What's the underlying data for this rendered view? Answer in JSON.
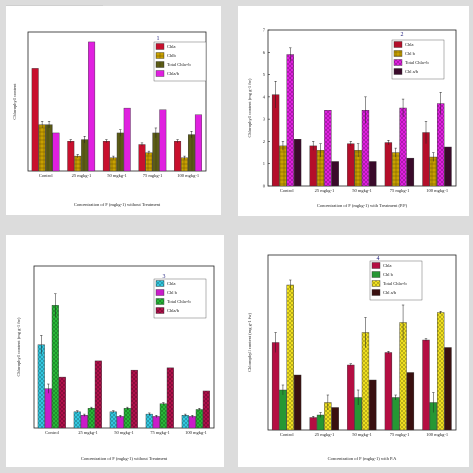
{
  "patterns": {
    "chla": "pat-solid",
    "chlb": "pat-grid",
    "total": "pat-hatch",
    "ratio": "pat-solid"
  },
  "chart_data": [
    {
      "type": "bar",
      "panel_number": "1",
      "categories": [
        "Control",
        "25 mgkg-1",
        "50 mgkg-1",
        "75 mgkg-1",
        "100 mgkg-1"
      ],
      "xlabel": "Concentration of F (mgkg-1) without Treatment",
      "ylabel": "Chlorophyll content",
      "ylim": [
        0,
        4.2
      ],
      "yticks": [],
      "legend_position": "top-right",
      "series": [
        {
          "name": "Chla",
          "color": "#c8102e",
          "values": [
            3.1,
            0.9,
            0.9,
            0.8,
            0.9
          ],
          "errors": [
            0,
            0.05,
            0.05,
            0.05,
            0.05
          ]
        },
        {
          "name": "Chlb",
          "color": "#c8a000",
          "values": [
            1.4,
            0.45,
            0.4,
            0.55,
            0.4
          ],
          "errors": [
            0.1,
            0.05,
            0.05,
            0.05,
            0.05
          ]
        },
        {
          "name": "Total Chla+b",
          "color": "#6b6b1a",
          "values": [
            1.4,
            0.95,
            1.15,
            1.15,
            1.1
          ],
          "errors": [
            0.1,
            0.1,
            0.1,
            0.15,
            0.1
          ]
        },
        {
          "name": "Chla/b",
          "color": "#e020e0",
          "values": [
            1.15,
            3.9,
            1.9,
            1.85,
            1.7
          ],
          "errors": [
            0,
            0,
            0,
            0,
            0
          ]
        }
      ]
    },
    {
      "type": "bar",
      "panel_number": "2",
      "categories": [
        "Control",
        "25 mgkg-1",
        "50 mgkg-1",
        "75 mgkg-1",
        "100 mgkg-1"
      ],
      "xlabel": "Concentration of F (mgkg-1) with Treatment (P.F)",
      "ylabel": "Chlorophyll content (mg g-1 fw)",
      "ylim": [
        0,
        7
      ],
      "yticks": [
        "0",
        "1",
        "2",
        "3",
        "4",
        "5",
        "6",
        "7"
      ],
      "legend_position": "top-right",
      "series": [
        {
          "name": "Chla",
          "color": "#c8102e",
          "values": [
            4.1,
            1.8,
            1.9,
            1.95,
            2.4
          ],
          "errors": [
            0.6,
            0.2,
            0.1,
            0.1,
            0.5
          ]
        },
        {
          "name": "Chl b",
          "color": "#c8a000",
          "values": [
            1.8,
            1.6,
            1.6,
            1.5,
            1.3
          ],
          "errors": [
            0.2,
            0.3,
            0.3,
            0.2,
            0.2
          ]
        },
        {
          "name": "Total Chla+b",
          "color": "#e020e0",
          "values": [
            5.9,
            3.4,
            3.4,
            3.5,
            3.7
          ],
          "errors": [
            0.3,
            0,
            0.6,
            0.4,
            0.5
          ]
        },
        {
          "name": "Chl a/b",
          "color": "#3a0a2a",
          "values": [
            2.1,
            1.1,
            1.1,
            1.25,
            1.75
          ],
          "errors": [
            0,
            0,
            0,
            0,
            0
          ]
        }
      ]
    },
    {
      "type": "bar",
      "panel_number": "3",
      "categories": [
        "Control",
        "25 mgkg-1",
        "50 mgkg-1",
        "75 mgkg-1",
        "100 mgkg-1"
      ],
      "xlabel": "Concentration of F (mgkg-1) without Treatment",
      "ylabel": "Chlorophyll content (mg g-1 fw)",
      "ylim": [
        0,
        7
      ],
      "yticks": [],
      "legend_position": "top-right",
      "series": [
        {
          "name": "Chla",
          "color": "#33c8e0",
          "values": [
            3.6,
            0.7,
            0.7,
            0.6,
            0.55
          ],
          "errors": [
            0.4,
            0.05,
            0.05,
            0.05,
            0.05
          ]
        },
        {
          "name": "Chl b",
          "color": "#e020e0",
          "values": [
            1.7,
            0.55,
            0.5,
            0.5,
            0.5
          ],
          "errors": [
            0.2,
            0.05,
            0.05,
            0.05,
            0.05
          ]
        },
        {
          "name": "Total Chla+b",
          "color": "#28b838",
          "values": [
            5.3,
            0.85,
            0.85,
            1.05,
            0.8
          ],
          "errors": [
            0.5,
            0.05,
            0.05,
            0.05,
            0.05
          ]
        },
        {
          "name": "Chla/b",
          "color": "#b0104a",
          "values": [
            2.2,
            2.9,
            2.5,
            2.6,
            1.6
          ],
          "errors": [
            0,
            0,
            0,
            0,
            0
          ]
        }
      ]
    },
    {
      "type": "bar",
      "panel_number": "4",
      "categories": [
        "Control",
        "25 mgkg-1",
        "50 mgkg-1",
        "75 mgkg-1",
        "100 mgkg-1"
      ],
      "xlabel": "Concentration of F (mgkg-1) with P.A",
      "ylabel": "Chlorophyll content (mg g-1 fw)",
      "ylim": [
        0,
        7
      ],
      "yticks": [],
      "legend_position": "top-right",
      "series": [
        {
          "name": "Chla",
          "color": "#c8104a",
          "values": [
            3.5,
            0.5,
            2.6,
            3.1,
            3.6
          ],
          "errors": [
            0.4,
            0.05,
            0.05,
            0.05,
            0.05
          ]
        },
        {
          "name": "Chl b",
          "color": "#2aa83a",
          "values": [
            1.6,
            0.6,
            1.3,
            1.3,
            1.1
          ],
          "errors": [
            0.2,
            0.1,
            0.3,
            0.1,
            0.4
          ]
        },
        {
          "name": "Total Chla+b",
          "color": "#f0e020",
          "values": [
            5.8,
            1.1,
            3.9,
            4.3,
            4.7
          ],
          "errors": [
            0.2,
            0.3,
            0.6,
            0.7,
            0.05
          ]
        },
        {
          "name": "Chl a/b",
          "color": "#3a1010",
          "values": [
            2.2,
            0.9,
            2.0,
            2.3,
            3.3
          ],
          "errors": [
            0,
            0,
            0,
            0,
            0
          ]
        }
      ]
    }
  ]
}
